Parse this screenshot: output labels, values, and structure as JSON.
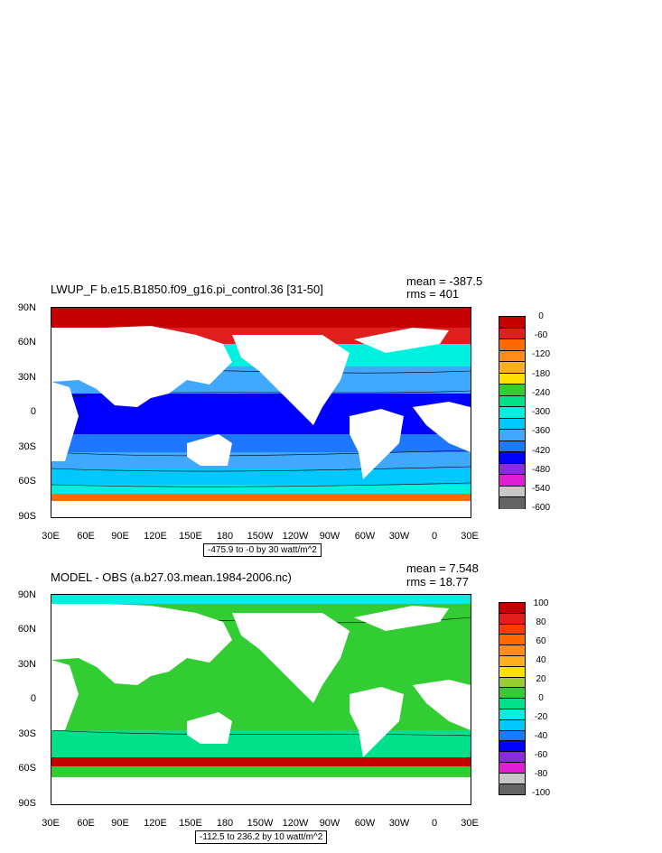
{
  "panels": [
    {
      "title": "LWUP_F b.e15.B1850.f09_g16.pi_control.36 [31-50]",
      "mean": "mean = -387.5",
      "rms": "rms = 401",
      "info": "-475.9 to -0 by 30 watt/m^2",
      "lat_labels": [
        "90N",
        "60N",
        "30N",
        "0",
        "30S",
        "60S",
        "90S"
      ],
      "lon_labels": [
        "30E",
        "60E",
        "90E",
        "120E",
        "150E",
        "180",
        "150W",
        "120W",
        "90W",
        "60W",
        "30W",
        "0",
        "30E"
      ],
      "colorbar": {
        "labels": [
          "0",
          "-60",
          "-120",
          "-180",
          "-240",
          "-300",
          "-360",
          "-420",
          "-480",
          "-540",
          "-600"
        ],
        "colors": [
          "#c40000",
          "#e01e1e",
          "#ff6a00",
          "#ff8c1a",
          "#ffb020",
          "#ffe000",
          "#32cd32",
          "#00e08a",
          "#00f0e0",
          "#00c8ff",
          "#40a8ff",
          "#1e78ff",
          "#0000ff",
          "#8a2be2",
          "#e01ed2",
          "#c8c8c8",
          "#646464"
        ]
      }
    },
    {
      "title": "MODEL - OBS (a.b27.03.mean.1984-2006.nc)",
      "mean": "mean = 7.548",
      "rms": "rms = 18.77",
      "info": "-112.5 to 236.2 by 10 watt/m^2",
      "lat_labels": [
        "90N",
        "60N",
        "30N",
        "0",
        "30S",
        "60S",
        "90S"
      ],
      "lon_labels": [
        "30E",
        "60E",
        "90E",
        "120E",
        "150E",
        "180",
        "150W",
        "120W",
        "90W",
        "60W",
        "30W",
        "0",
        "30E"
      ],
      "colorbar": {
        "labels": [
          "100",
          "80",
          "60",
          "40",
          "20",
          "0",
          "-20",
          "-40",
          "-60",
          "-80",
          "-100"
        ],
        "colors": [
          "#c40000",
          "#e01e1e",
          "#ff3c00",
          "#ff6a00",
          "#ff8c1a",
          "#ffb020",
          "#ffe000",
          "#9acd32",
          "#32cd32",
          "#00e08a",
          "#00f0e0",
          "#00c8ff",
          "#1e78ff",
          "#0000ff",
          "#8a2be2",
          "#e01ed2",
          "#c8c8c8",
          "#646464"
        ]
      }
    }
  ]
}
